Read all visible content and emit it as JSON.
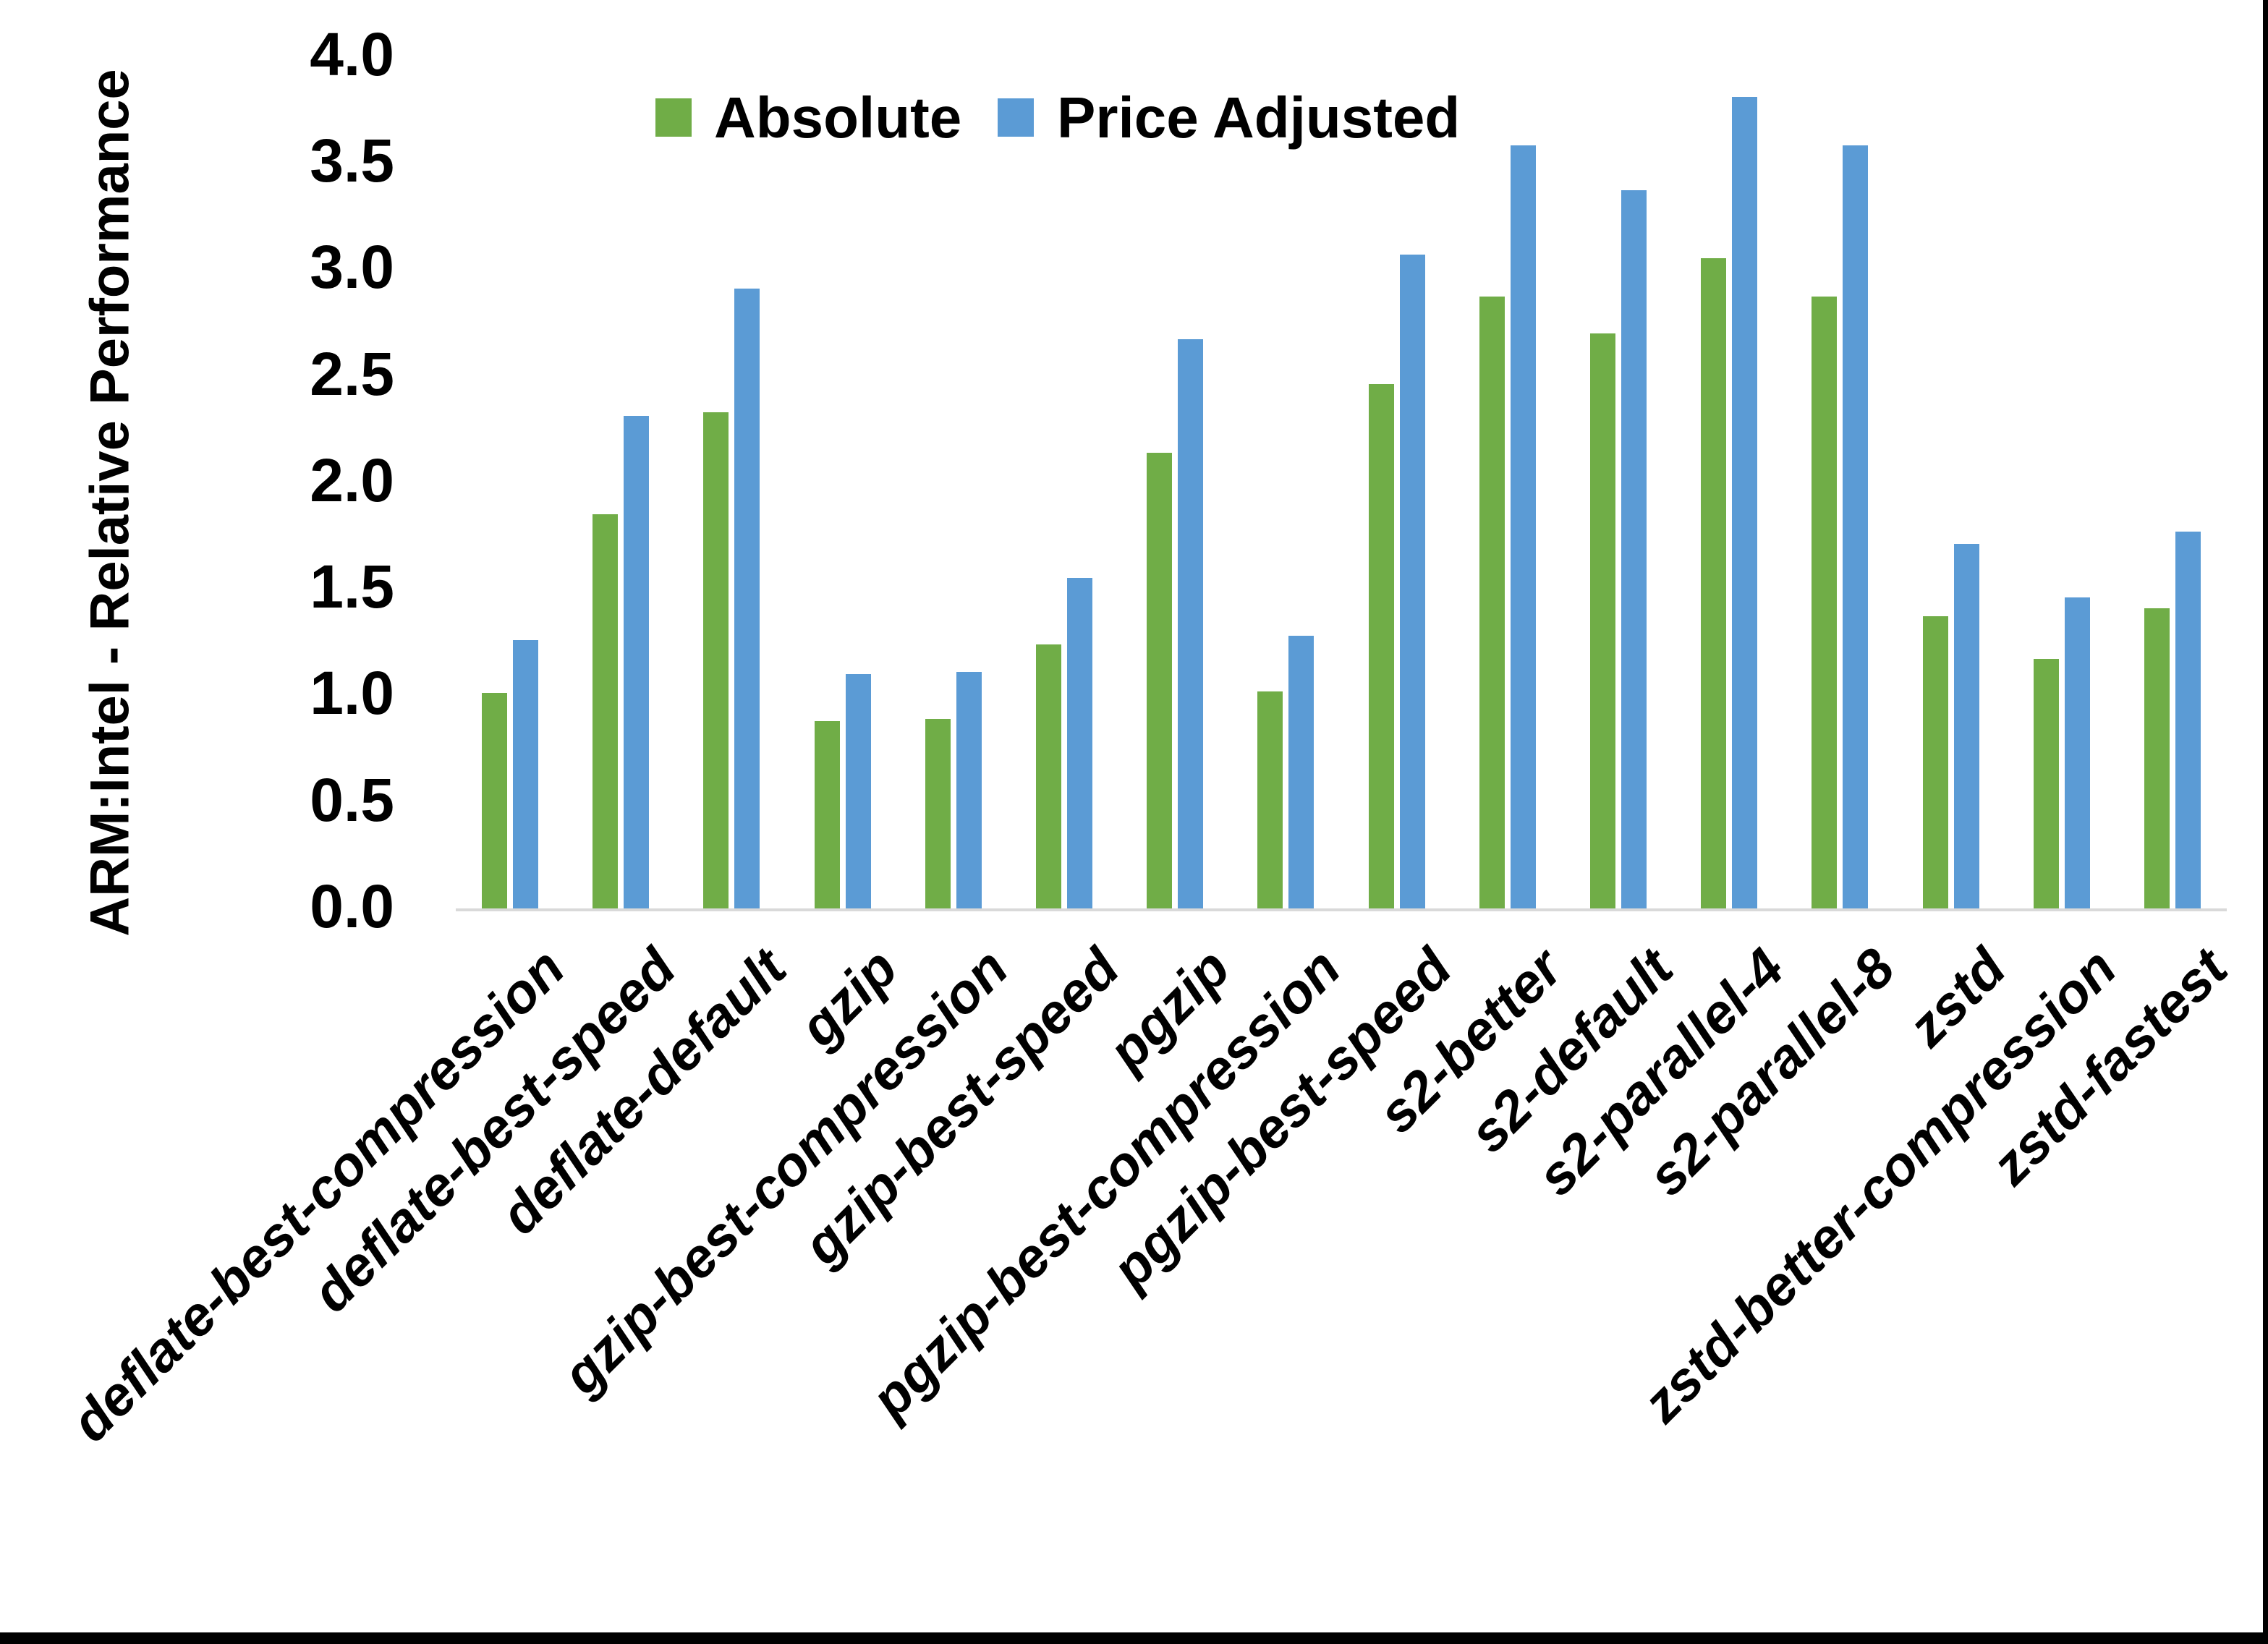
{
  "chart_data": {
    "type": "bar",
    "title": "",
    "xlabel": "",
    "ylabel": "ARM:Intel - Relative Performance",
    "ylim": [
      0.0,
      4.0
    ],
    "ytick_step": 0.5,
    "yticks": [
      "4.0",
      "3.5",
      "3.0",
      "2.5",
      "2.0",
      "1.5",
      "1.0",
      "0.5",
      "0.0"
    ],
    "grid": false,
    "legend_position": "top-center",
    "axis_color": "#D9D9D9",
    "text_color": "#000000",
    "background_color": "#FFFFFF",
    "categories": [
      "deflate-best-compression",
      "deflate-best-speed",
      "deflate-default",
      "gzip",
      "gzip-best-compression",
      "gzip-best-speed",
      "pgzip",
      "pgzip-best-compression",
      "pgzip-best-speed",
      "s2-better",
      "s2-default",
      "s2-parallel-4",
      "s2-parallel-8",
      "zstd",
      "zstd-better-compression",
      "zstd-fastest"
    ],
    "series": [
      {
        "name": "Absolute",
        "color": "#70AD47",
        "values": [
          1.01,
          1.85,
          2.33,
          0.88,
          0.89,
          1.24,
          2.14,
          1.02,
          2.46,
          2.87,
          2.7,
          3.05,
          2.87,
          1.37,
          1.17,
          1.41
        ]
      },
      {
        "name": "Price Adjusted",
        "color": "#5B9BD5",
        "values": [
          1.26,
          2.31,
          2.91,
          1.1,
          1.11,
          1.55,
          2.67,
          1.28,
          3.07,
          3.58,
          3.37,
          3.81,
          3.58,
          1.71,
          1.46,
          1.77
        ]
      }
    ]
  }
}
